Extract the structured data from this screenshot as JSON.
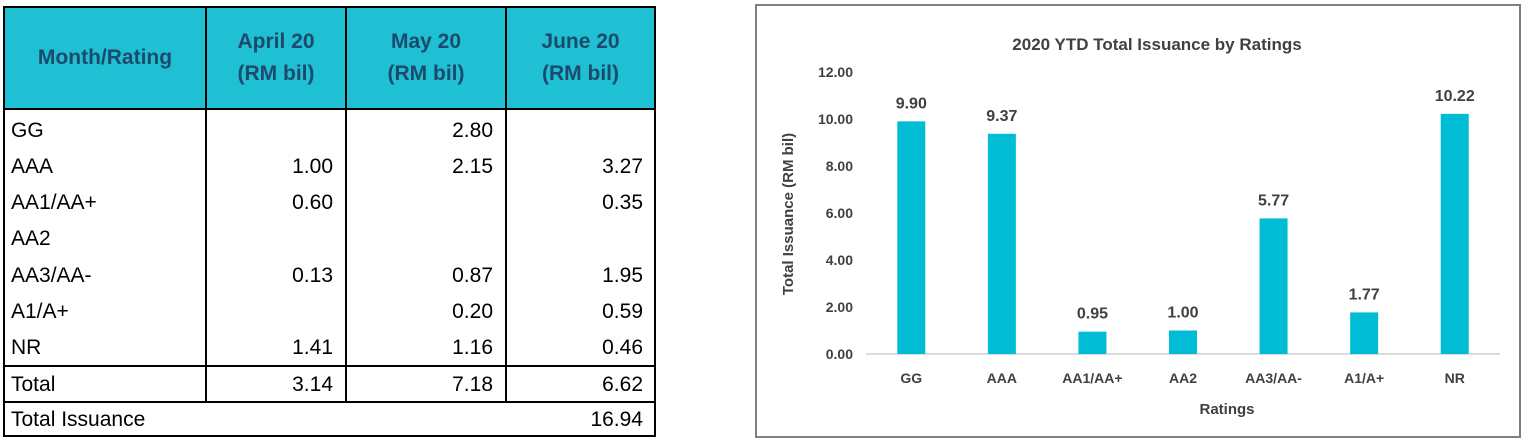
{
  "table": {
    "headers": [
      "Month/Rating",
      "April 20\n(RM bil)",
      "May 20\n(RM bil)",
      "June 20\n(RM bil)"
    ],
    "rows": [
      {
        "rating": "GG",
        "apr": "",
        "may": "2.80",
        "jun": ""
      },
      {
        "rating": "AAA",
        "apr": "1.00",
        "may": "2.15",
        "jun": "3.27"
      },
      {
        "rating": "AA1/AA+",
        "apr": "0.60",
        "may": "",
        "jun": "0.35"
      },
      {
        "rating": "AA2",
        "apr": "",
        "may": "",
        "jun": ""
      },
      {
        "rating": "AA3/AA-",
        "apr": "0.13",
        "may": "0.87",
        "jun": "1.95"
      },
      {
        "rating": "A1/A+",
        "apr": "",
        "may": "0.20",
        "jun": "0.59"
      },
      {
        "rating": "NR",
        "apr": "1.41",
        "may": "1.16",
        "jun": "0.46"
      }
    ],
    "total": {
      "label": "Total",
      "apr": "3.14",
      "may": "7.18",
      "jun": "6.62"
    },
    "total_issuance": {
      "label": "Total Issuance",
      "value": "16.94"
    },
    "header_color": "#1fbfd4",
    "header_text_color": "#1b4a6b"
  },
  "chart_data": {
    "type": "bar",
    "title": "2020 YTD Total Issuance by Ratings",
    "xlabel": "Ratings",
    "ylabel": "Total Issuance (RM bil)",
    "categories": [
      "GG",
      "AAA",
      "AA1/AA+",
      "AA2",
      "AA3/AA-",
      "A1/A+",
      "NR"
    ],
    "values": [
      9.9,
      9.37,
      0.95,
      1.0,
      5.77,
      1.77,
      10.22
    ],
    "data_labels": [
      "9.90",
      "9.37",
      "0.95",
      "1.00",
      "5.77",
      "1.77",
      "10.22"
    ],
    "ylim": [
      0,
      12
    ],
    "yticks": [
      "0.00",
      "2.00",
      "4.00",
      "6.00",
      "8.00",
      "10.00",
      "12.00"
    ],
    "bar_color": "#00bcd4",
    "grid": false,
    "legend": "none"
  }
}
